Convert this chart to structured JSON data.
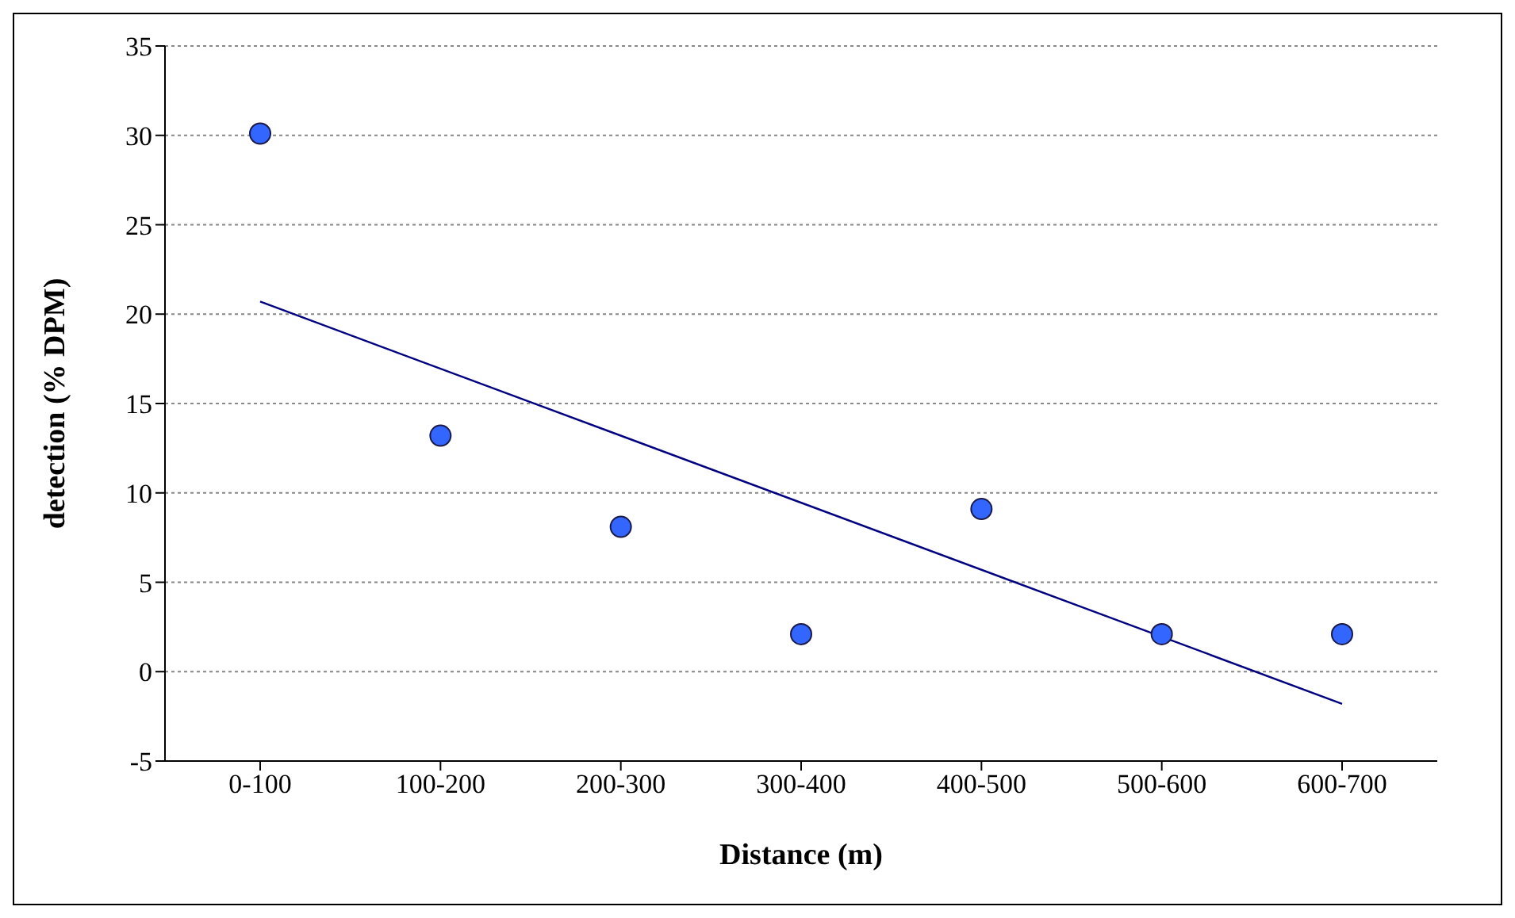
{
  "chart_data": {
    "type": "scatter",
    "xlabel": "Distance (m)",
    "ylabel": "detection (% DPM)",
    "categories": [
      "0-100",
      "100-200",
      "200-300",
      "300-400",
      "400-500",
      "500-600",
      "600-700"
    ],
    "series": [
      {
        "color": "#3366ff",
        "marker": "circle",
        "values": [
          30.1,
          13.2,
          8.1,
          2.1,
          9.1,
          2.1,
          2.1
        ]
      },
      {
        "type": "line",
        "color": "#000080",
        "marker": "none",
        "line_style": "solid",
        "values": [
          20.7,
          null,
          null,
          null,
          null,
          null,
          -1.8
        ]
      }
    ],
    "ylim": [
      -5,
      35
    ],
    "yticks": [
      -5,
      0,
      5,
      10,
      15,
      20,
      25,
      30,
      35
    ],
    "grid": "y",
    "legend": false
  }
}
